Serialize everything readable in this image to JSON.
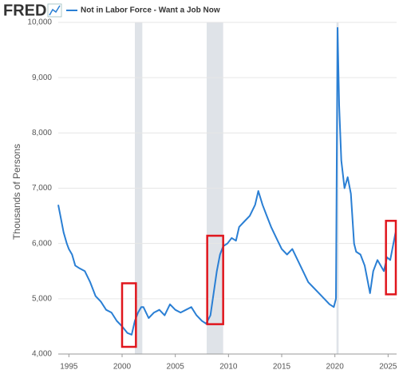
{
  "brand": "FRED",
  "chart_data": {
    "type": "line",
    "ylabel": "Thousands of Persons",
    "series": [
      {
        "name": "Not in Labor Force - Want a Job Now",
        "color": "#2a7fd4",
        "x": [
          1994.0,
          1994.2,
          1994.5,
          1994.8,
          1995.0,
          1995.3,
          1995.6,
          1996.0,
          1996.5,
          1997.0,
          1997.5,
          1998.0,
          1998.5,
          1999.0,
          1999.5,
          2000.0,
          2000.5,
          2000.9,
          2001.2,
          2001.5,
          2001.8,
          2002.0,
          2002.5,
          2003.0,
          2003.5,
          2004.0,
          2004.5,
          2005.0,
          2005.5,
          2006.0,
          2006.5,
          2007.0,
          2007.5,
          2007.9,
          2008.3,
          2008.6,
          2008.9,
          2009.2,
          2009.5,
          2009.9,
          2010.3,
          2010.7,
          2011.0,
          2011.5,
          2012.0,
          2012.5,
          2012.8,
          2013.2,
          2013.6,
          2014.0,
          2014.5,
          2015.0,
          2015.5,
          2016.0,
          2016.5,
          2017.0,
          2017.5,
          2018.0,
          2018.5,
          2019.0,
          2019.5,
          2019.9,
          2020.1,
          2020.25,
          2020.4,
          2020.6,
          2020.9,
          2021.2,
          2021.5,
          2021.8,
          2022.0,
          2022.4,
          2022.8,
          2023.0,
          2023.3,
          2023.6,
          2024.0,
          2024.3,
          2024.6,
          2024.9,
          2025.2,
          2025.5,
          2025.7
        ],
        "values": [
          6700,
          6500,
          6200,
          6000,
          5900,
          5800,
          5600,
          5550,
          5500,
          5300,
          5050,
          4950,
          4800,
          4750,
          4600,
          4500,
          4380,
          4350,
          4600,
          4750,
          4850,
          4850,
          4650,
          4750,
          4800,
          4700,
          4900,
          4800,
          4750,
          4800,
          4850,
          4700,
          4600,
          4550,
          4700,
          5100,
          5500,
          5800,
          5950,
          6000,
          6100,
          6050,
          6300,
          6400,
          6500,
          6700,
          6950,
          6700,
          6500,
          6300,
          6100,
          5900,
          5800,
          5900,
          5700,
          5500,
          5300,
          5200,
          5100,
          5000,
          4900,
          4850,
          5000,
          9900,
          8500,
          7500,
          7000,
          7200,
          6900,
          6000,
          5850,
          5800,
          5600,
          5400,
          5100,
          5500,
          5700,
          5600,
          5500,
          5750,
          5700,
          6000,
          6200
        ]
      }
    ],
    "xlim": [
      1994,
      2025.8
    ],
    "ylim": [
      4000,
      10000
    ],
    "xticks": [
      1995,
      2000,
      2005,
      2010,
      2015,
      2020,
      2025
    ],
    "yticks": [
      {
        "value": 4000,
        "label": "4,000"
      },
      {
        "value": 5000,
        "label": "5,000"
      },
      {
        "value": 6000,
        "label": "6,000"
      },
      {
        "value": 7000,
        "label": "7,000"
      },
      {
        "value": 8000,
        "label": "8,000"
      },
      {
        "value": 9000,
        "label": "9,000"
      },
      {
        "value": 10000,
        "label": "10,000"
      }
    ],
    "grid": true,
    "recessions": [
      [
        2001.2,
        2001.9
      ],
      [
        2007.95,
        2009.5
      ],
      [
        2020.15,
        2020.35
      ]
    ],
    "highlights": [
      {
        "x": [
          2000.0,
          2001.3
        ],
        "y": [
          4130,
          5280
        ]
      },
      {
        "x": [
          2008.0,
          2009.5
        ],
        "y": [
          4540,
          6140
        ]
      },
      {
        "x": [
          2024.8,
          2025.9
        ],
        "y": [
          5080,
          6410
        ]
      }
    ]
  }
}
